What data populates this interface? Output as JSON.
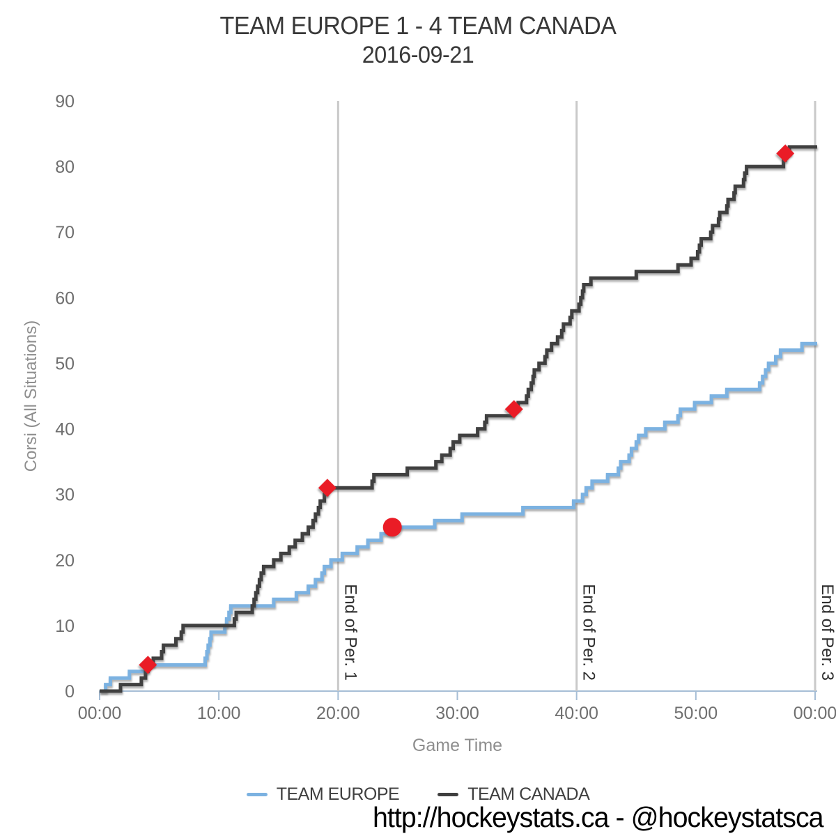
{
  "header": {
    "title": "TEAM EUROPE 1 - 4 TEAM CANADA",
    "date": "2016-09-21"
  },
  "footer": {
    "text": "http://hockeystats.ca - @hockeystatsca"
  },
  "legend": {
    "items": [
      {
        "label": "TEAM EUROPE",
        "color": "#7cb2e1"
      },
      {
        "label": "TEAM CANADA",
        "color": "#3f3f3f"
      }
    ]
  },
  "colors": {
    "europe_line": "#7cb2e1",
    "canada_line": "#3f3f3f",
    "goal_marker": "#ea1c25",
    "period_line": "#c9c9c9",
    "axis_line": "#a6bed6",
    "tick_text": "#6f6f6f",
    "axis_title_text": "#8e8e8e",
    "period_label_text": "#2e2e2e"
  },
  "chart_data": {
    "type": "line",
    "step": true,
    "title": "TEAM EUROPE 1 - 4 TEAM CANADA 2016-09-21",
    "xlabel": "Game Time",
    "ylabel": "Corsi (All Situations)",
    "x_minutes_range": [
      0,
      60
    ],
    "ylim": [
      0,
      90
    ],
    "grid": "off",
    "legend_position": "bottom",
    "x_ticks": [
      {
        "minute": 0,
        "label": "00:00"
      },
      {
        "minute": 10,
        "label": "10:00"
      },
      {
        "minute": 20,
        "label": "20:00"
      },
      {
        "minute": 30,
        "label": "30:00"
      },
      {
        "minute": 40,
        "label": "40:00"
      },
      {
        "minute": 50,
        "label": "50:00"
      },
      {
        "minute": 60,
        "label": "00:00"
      }
    ],
    "y_ticks": [
      0,
      10,
      20,
      30,
      40,
      50,
      60,
      70,
      80,
      90
    ],
    "period_markers": [
      {
        "minute": 20,
        "label": "End of Per. 1"
      },
      {
        "minute": 40,
        "label": "End of Per. 2"
      },
      {
        "minute": 60,
        "label": "End of Per. 3"
      }
    ],
    "series": [
      {
        "name": "TEAM EUROPE",
        "color": "#7cb2e1",
        "final_value": 53,
        "points": [
          [
            0.5,
            1
          ],
          [
            0.9,
            2
          ],
          [
            2.5,
            3
          ],
          [
            3.8,
            4
          ],
          [
            8.85,
            5
          ],
          [
            9.0,
            6
          ],
          [
            9.1,
            7
          ],
          [
            9.25,
            8
          ],
          [
            9.35,
            9
          ],
          [
            10.5,
            10
          ],
          [
            10.65,
            11
          ],
          [
            10.85,
            12
          ],
          [
            11.0,
            13
          ],
          [
            14.6,
            14
          ],
          [
            16.5,
            15
          ],
          [
            17.5,
            16
          ],
          [
            18.1,
            17
          ],
          [
            18.65,
            18
          ],
          [
            18.85,
            19
          ],
          [
            19.4,
            20
          ],
          [
            20.35,
            21
          ],
          [
            21.6,
            22
          ],
          [
            22.5,
            23
          ],
          [
            23.6,
            24
          ],
          [
            24.55,
            25
          ],
          [
            28.1,
            26
          ],
          [
            30.4,
            27
          ],
          [
            35.5,
            28
          ],
          [
            39.75,
            29
          ],
          [
            40.5,
            30
          ],
          [
            40.8,
            31
          ],
          [
            41.3,
            32
          ],
          [
            42.6,
            33
          ],
          [
            43.5,
            34
          ],
          [
            43.7,
            35
          ],
          [
            44.4,
            36
          ],
          [
            44.6,
            37
          ],
          [
            45.0,
            38
          ],
          [
            45.2,
            39
          ],
          [
            45.8,
            40
          ],
          [
            47.4,
            41
          ],
          [
            48.5,
            42
          ],
          [
            48.7,
            43
          ],
          [
            49.9,
            44
          ],
          [
            51.3,
            45
          ],
          [
            52.6,
            46
          ],
          [
            55.35,
            47
          ],
          [
            55.6,
            48
          ],
          [
            55.85,
            49
          ],
          [
            56.1,
            50
          ],
          [
            56.7,
            51
          ],
          [
            57.1,
            52
          ],
          [
            58.9,
            53
          ]
        ]
      },
      {
        "name": "TEAM CANADA",
        "color": "#3f3f3f",
        "final_value": 83,
        "points": [
          [
            1.75,
            1
          ],
          [
            3.5,
            2
          ],
          [
            3.85,
            3
          ],
          [
            4.05,
            4
          ],
          [
            4.5,
            5
          ],
          [
            5.2,
            6
          ],
          [
            5.35,
            7
          ],
          [
            6.4,
            8
          ],
          [
            6.85,
            9
          ],
          [
            7.0,
            10
          ],
          [
            11.3,
            11
          ],
          [
            11.45,
            12
          ],
          [
            12.8,
            13
          ],
          [
            12.95,
            14
          ],
          [
            13.1,
            15
          ],
          [
            13.25,
            16
          ],
          [
            13.4,
            17
          ],
          [
            13.55,
            18
          ],
          [
            13.75,
            19
          ],
          [
            14.6,
            20
          ],
          [
            15.2,
            21
          ],
          [
            15.9,
            22
          ],
          [
            16.4,
            23
          ],
          [
            17.0,
            24
          ],
          [
            17.5,
            25
          ],
          [
            17.9,
            26
          ],
          [
            18.1,
            27
          ],
          [
            18.35,
            28
          ],
          [
            18.5,
            29
          ],
          [
            18.85,
            30
          ],
          [
            19.05,
            31
          ],
          [
            22.85,
            32
          ],
          [
            23.0,
            33
          ],
          [
            25.8,
            34
          ],
          [
            28.2,
            35
          ],
          [
            28.7,
            36
          ],
          [
            29.4,
            37
          ],
          [
            29.65,
            38
          ],
          [
            30.2,
            39
          ],
          [
            31.7,
            40
          ],
          [
            32.3,
            41
          ],
          [
            32.45,
            42
          ],
          [
            34.65,
            43
          ],
          [
            35.1,
            44
          ],
          [
            35.8,
            45
          ],
          [
            35.95,
            46
          ],
          [
            36.2,
            47
          ],
          [
            36.35,
            48
          ],
          [
            36.45,
            49
          ],
          [
            36.85,
            50
          ],
          [
            37.35,
            51
          ],
          [
            37.5,
            52
          ],
          [
            37.9,
            53
          ],
          [
            38.4,
            54
          ],
          [
            38.75,
            55
          ],
          [
            38.9,
            56
          ],
          [
            39.45,
            57
          ],
          [
            39.6,
            58
          ],
          [
            40.2,
            59
          ],
          [
            40.35,
            60
          ],
          [
            40.5,
            61
          ],
          [
            40.6,
            62
          ],
          [
            41.2,
            63
          ],
          [
            45.0,
            64
          ],
          [
            48.5,
            65
          ],
          [
            49.6,
            66
          ],
          [
            50.15,
            67
          ],
          [
            50.3,
            68
          ],
          [
            50.45,
            69
          ],
          [
            51.25,
            70
          ],
          [
            51.4,
            71
          ],
          [
            51.9,
            72
          ],
          [
            52.0,
            73
          ],
          [
            52.6,
            74
          ],
          [
            52.7,
            75
          ],
          [
            53.2,
            76
          ],
          [
            53.3,
            77
          ],
          [
            54.0,
            78
          ],
          [
            54.1,
            79
          ],
          [
            54.25,
            80
          ],
          [
            57.35,
            81
          ],
          [
            57.5,
            82
          ],
          [
            57.85,
            83
          ]
        ]
      }
    ],
    "goals": [
      {
        "team": "TEAM CANADA",
        "marker": "diamond",
        "minute": 4.05,
        "corsi": 4
      },
      {
        "team": "TEAM CANADA",
        "marker": "diamond",
        "minute": 19.1,
        "corsi": 31
      },
      {
        "team": "TEAM EUROPE",
        "marker": "circle",
        "minute": 24.55,
        "corsi": 25
      },
      {
        "team": "TEAM CANADA",
        "marker": "diamond",
        "minute": 34.75,
        "corsi": 43
      },
      {
        "team": "TEAM CANADA",
        "marker": "diamond",
        "minute": 57.5,
        "corsi": 82
      }
    ]
  }
}
